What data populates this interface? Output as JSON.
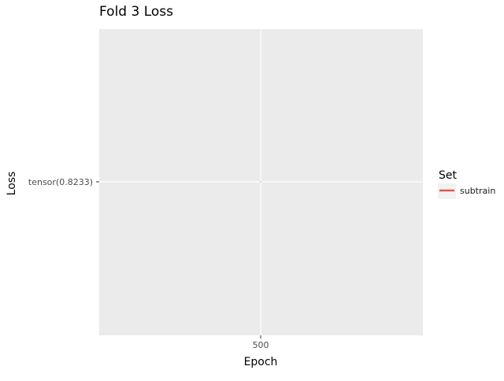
{
  "chart_data": {
    "type": "line",
    "title": "Fold 3 Loss",
    "xlabel": "Epoch",
    "ylabel": "Loss",
    "x_ticks": [
      "500"
    ],
    "y_ticks": [
      "tensor(0.8233)"
    ],
    "series": [
      {
        "name": "subtrain",
        "color": "#e0594f",
        "points": [
          {
            "x": 500,
            "y": "tensor(0.8233)"
          }
        ]
      }
    ],
    "legend": {
      "title": "Set",
      "items": [
        "subtrain"
      ],
      "position": "right"
    },
    "grid": true,
    "panel_background": "#ebebeb",
    "grid_color": "#ffffff"
  }
}
